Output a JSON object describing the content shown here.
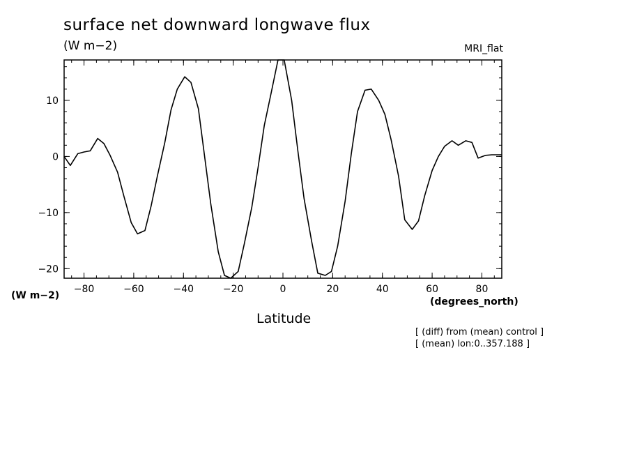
{
  "chart_data": {
    "type": "line",
    "title": "surface net downward longwave flux",
    "units_label": "(W m−2)",
    "model_label": "MRI_flat",
    "xlabel": "Latitude",
    "x_units": "(degrees_north)",
    "y_units": "(W m−2)",
    "notes": [
      "[ (diff) from (mean) control ]",
      "[ (mean) lon:0..357.188 ]"
    ],
    "xlim": [
      -88,
      88
    ],
    "ylim": [
      -21.7,
      17.2
    ],
    "x_ticks": [
      -80,
      -60,
      -40,
      -20,
      0,
      20,
      40,
      60,
      80
    ],
    "x_tick_labels": [
      "−80",
      "−60",
      "−40",
      "−20",
      "0",
      "20",
      "40",
      "60",
      "80"
    ],
    "y_ticks": [
      -20,
      -10,
      0,
      10
    ],
    "y_tick_labels": [
      "−20",
      "−10",
      "0",
      "10"
    ],
    "grid": false,
    "series": [
      {
        "x": [
          -88,
          -85.5,
          -82.5,
          -80,
          -77.5,
          -74.5,
          -72,
          -69.5,
          -66.5,
          -64,
          -61,
          -58.5,
          -55.5,
          -53,
          -50.5,
          -47.5,
          -45,
          -42.5,
          -39.5,
          -37,
          -34,
          -31.5,
          -29,
          -26,
          -23.5,
          -21,
          -18,
          -15.5,
          -12.5,
          -10,
          -7.5,
          -4.5,
          -2,
          0.5,
          3.5,
          6,
          8.5,
          11.5,
          14,
          17,
          19.5,
          22,
          25,
          27.5,
          30,
          33,
          35.5,
          38.5,
          41,
          43.5,
          46.5,
          49,
          52,
          54.5,
          57,
          60,
          62.5,
          65,
          68,
          70.5,
          73.5,
          76,
          78.5,
          81.5,
          84,
          87,
          88
        ],
        "y": [
          0,
          -1.6,
          0.5,
          0.8,
          1.0,
          3.2,
          2.3,
          0.2,
          -2.8,
          -7.0,
          -11.8,
          -13.8,
          -13.2,
          -8.8,
          -3.5,
          2.5,
          8.3,
          12.0,
          14.2,
          13.2,
          8.5,
          0,
          -8.5,
          -17.0,
          -21.2,
          -21.7,
          -20.5,
          -15.5,
          -9.0,
          -2.0,
          5.5,
          11.8,
          17.2,
          17.2,
          10.0,
          1.0,
          -7.5,
          -15.0,
          -20.8,
          -21.2,
          -20.5,
          -16.0,
          -8.0,
          0.5,
          8.0,
          11.8,
          12.0,
          10.0,
          7.5,
          3.0,
          -3.5,
          -11.3,
          -13.0,
          -11.5,
          -7.0,
          -2.5,
          0,
          1.8,
          2.8,
          2.0,
          2.8,
          2.5,
          -0.3,
          0.2,
          0.3,
          0.3,
          0.3
        ]
      }
    ]
  }
}
